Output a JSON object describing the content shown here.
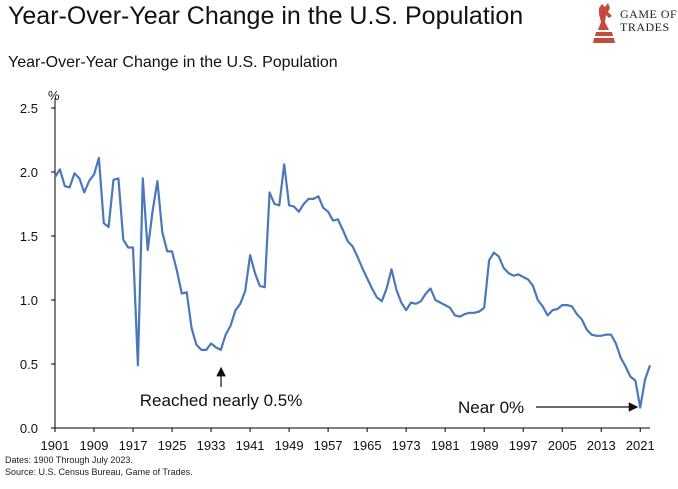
{
  "header": {
    "title": "Year-Over-Year Change in the U.S. Population",
    "logo_line1": "GAME OF",
    "logo_line2": "TRADES"
  },
  "footer": {
    "dates": "Dates: 1900 Through July 2023.",
    "source": "Source: U.S. Census Bureau, Game of Trades."
  },
  "colors": {
    "line": "#4a78b8",
    "axis": "#000000"
  },
  "chart_data": {
    "type": "line",
    "title": "Year-Over-Year Change in the U.S. Population",
    "ylabel": "%",
    "xlabel": "",
    "xlim": [
      1901,
      2023
    ],
    "ylim": [
      0,
      2.5
    ],
    "grid": false,
    "x_ticks": [
      "1901",
      "1909",
      "1917",
      "1925",
      "1933",
      "1941",
      "1949",
      "1957",
      "1965",
      "1973",
      "1981",
      "1989",
      "1997",
      "2005",
      "2013",
      "2021"
    ],
    "y_ticks": [
      "0.0",
      "0.5",
      "1.0",
      "1.5",
      "2.0",
      "2.5"
    ],
    "series": [
      {
        "x": [
          1901,
          1902,
          1903,
          1904,
          1905,
          1906,
          1907,
          1908,
          1909,
          1910,
          1911,
          1912,
          1913,
          1914,
          1915,
          1916,
          1917,
          1918,
          1919,
          1920,
          1921,
          1922,
          1923,
          1924,
          1925,
          1926,
          1927,
          1928,
          1929,
          1930,
          1931,
          1932,
          1933,
          1934,
          1935,
          1936,
          1937,
          1938,
          1939,
          1940,
          1941,
          1942,
          1943,
          1944,
          1945,
          1946,
          1947,
          1948,
          1949,
          1950,
          1951,
          1952,
          1953,
          1954,
          1955,
          1956,
          1957,
          1958,
          1959,
          1960,
          1961,
          1962,
          1963,
          1964,
          1965,
          1966,
          1967,
          1968,
          1969,
          1970,
          1971,
          1972,
          1973,
          1974,
          1975,
          1976,
          1977,
          1978,
          1979,
          1980,
          1981,
          1982,
          1983,
          1984,
          1985,
          1986,
          1987,
          1988,
          1989,
          1990,
          1991,
          1992,
          1993,
          1994,
          1995,
          1996,
          1997,
          1998,
          1999,
          2000,
          2001,
          2002,
          2003,
          2004,
          2005,
          2006,
          2007,
          2008,
          2009,
          2010,
          2011,
          2012,
          2013,
          2014,
          2015,
          2016,
          2017,
          2018,
          2019,
          2020,
          2021,
          2022,
          2023
        ],
        "values": [
          1.96,
          2.02,
          1.89,
          1.88,
          1.99,
          1.95,
          1.84,
          1.93,
          1.98,
          2.11,
          1.6,
          1.57,
          1.94,
          1.95,
          1.47,
          1.41,
          1.41,
          0.49,
          1.95,
          1.39,
          1.69,
          1.93,
          1.53,
          1.38,
          1.38,
          1.23,
          1.05,
          1.06,
          0.78,
          0.65,
          0.61,
          0.61,
          0.66,
          0.63,
          0.61,
          0.73,
          0.8,
          0.92,
          0.97,
          1.07,
          1.35,
          1.21,
          1.11,
          1.1,
          1.84,
          1.75,
          1.74,
          2.06,
          1.74,
          1.73,
          1.69,
          1.75,
          1.79,
          1.79,
          1.81,
          1.72,
          1.69,
          1.62,
          1.63,
          1.55,
          1.46,
          1.42,
          1.34,
          1.25,
          1.17,
          1.09,
          1.02,
          0.99,
          1.09,
          1.24,
          1.08,
          0.98,
          0.92,
          0.98,
          0.97,
          0.99,
          1.05,
          1.09,
          1.0,
          0.98,
          0.96,
          0.94,
          0.88,
          0.87,
          0.89,
          0.9,
          0.9,
          0.91,
          0.94,
          1.31,
          1.37,
          1.34,
          1.25,
          1.21,
          1.19,
          1.2,
          1.18,
          1.16,
          1.11,
          1.0,
          0.95,
          0.88,
          0.92,
          0.93,
          0.96,
          0.96,
          0.95,
          0.89,
          0.85,
          0.77,
          0.73,
          0.72,
          0.72,
          0.73,
          0.73,
          0.66,
          0.55,
          0.48,
          0.4,
          0.37,
          0.16,
          0.38,
          0.49
        ]
      }
    ],
    "annotations": [
      {
        "text": "Reached nearly 0.5%",
        "x": 1933,
        "y": 0.5
      },
      {
        "text": "Near 0%",
        "x": 2022,
        "y": 0.16
      }
    ]
  }
}
